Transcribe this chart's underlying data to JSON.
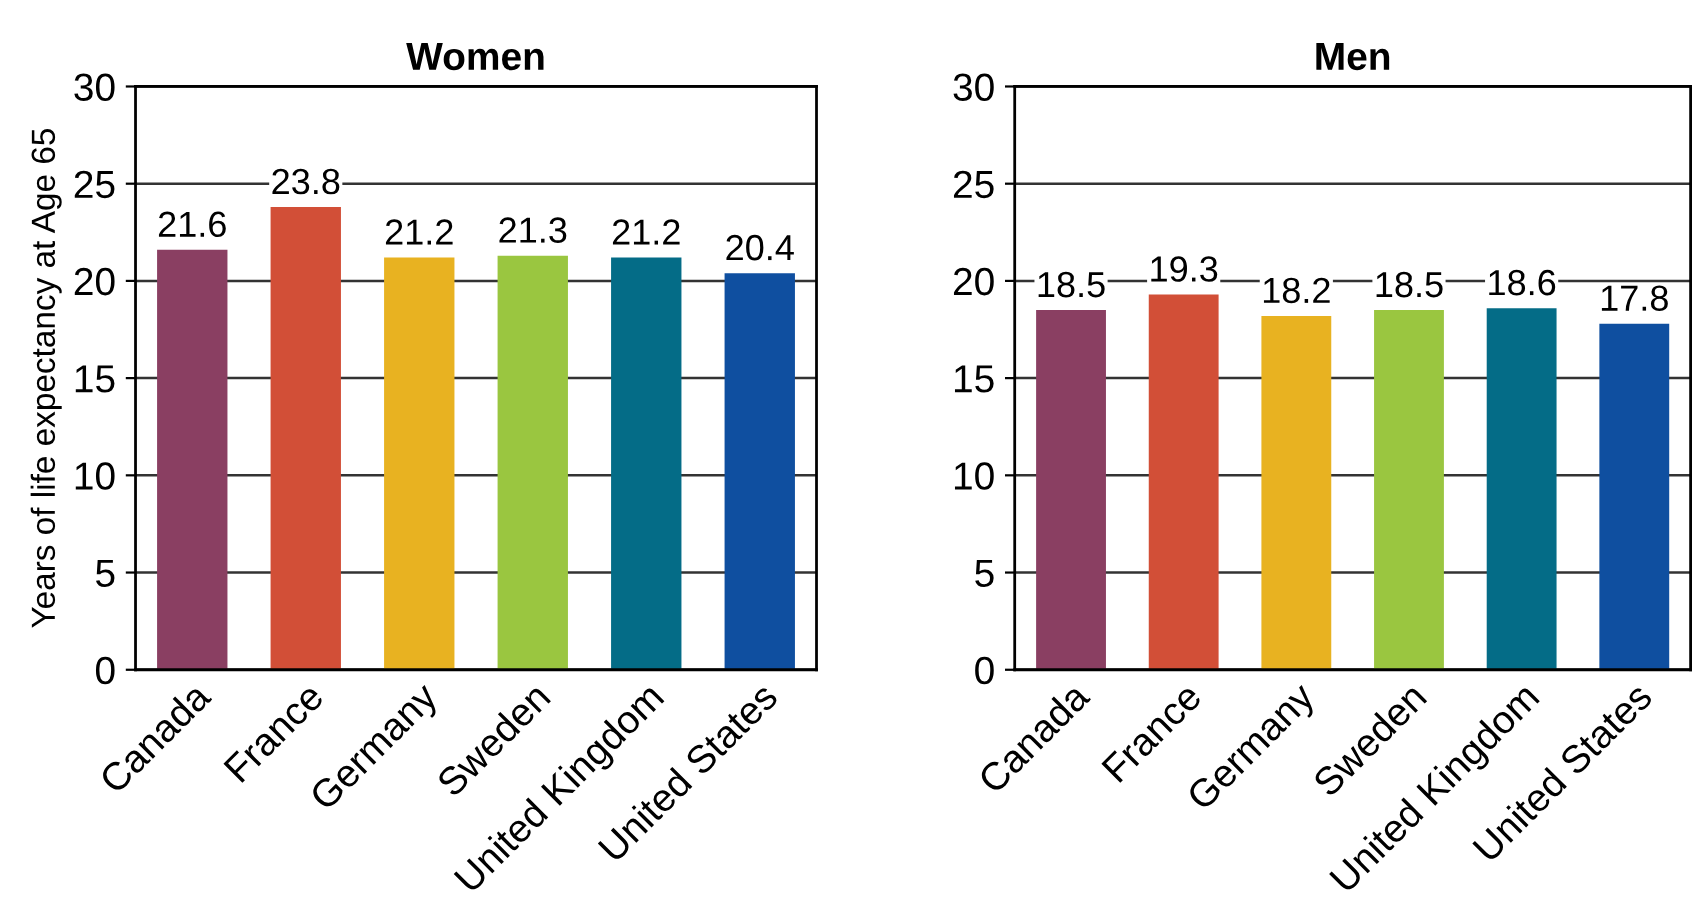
{
  "chart_data": [
    {
      "type": "bar",
      "title": "Women",
      "ylabel": "Years of life expectancy at Age 65",
      "categories": [
        "Canada",
        "France",
        "Germany",
        "Sweden",
        "United Kingdom",
        "United States"
      ],
      "values": [
        21.6,
        23.8,
        21.2,
        21.3,
        21.2,
        20.4
      ],
      "colors": [
        "#8a3f62",
        "#d24f37",
        "#e8b221",
        "#9ac640",
        "#046c87",
        "#0f4fa0"
      ],
      "ylim": [
        0,
        30
      ],
      "yticks": [
        0,
        5,
        10,
        15,
        20,
        25,
        30
      ],
      "grid": "y",
      "data_labels": true
    },
    {
      "type": "bar",
      "title": "Men",
      "categories": [
        "Canada",
        "France",
        "Germany",
        "Sweden",
        "United Kingdom",
        "United States"
      ],
      "values": [
        18.5,
        19.3,
        18.2,
        18.5,
        18.6,
        17.8
      ],
      "colors": [
        "#8a3f62",
        "#d24f37",
        "#e8b221",
        "#9ac640",
        "#046c87",
        "#0f4fa0"
      ],
      "ylim": [
        0,
        30
      ],
      "yticks": [
        0,
        5,
        10,
        15,
        20,
        25,
        30
      ],
      "grid": "y",
      "data_labels": true
    }
  ]
}
